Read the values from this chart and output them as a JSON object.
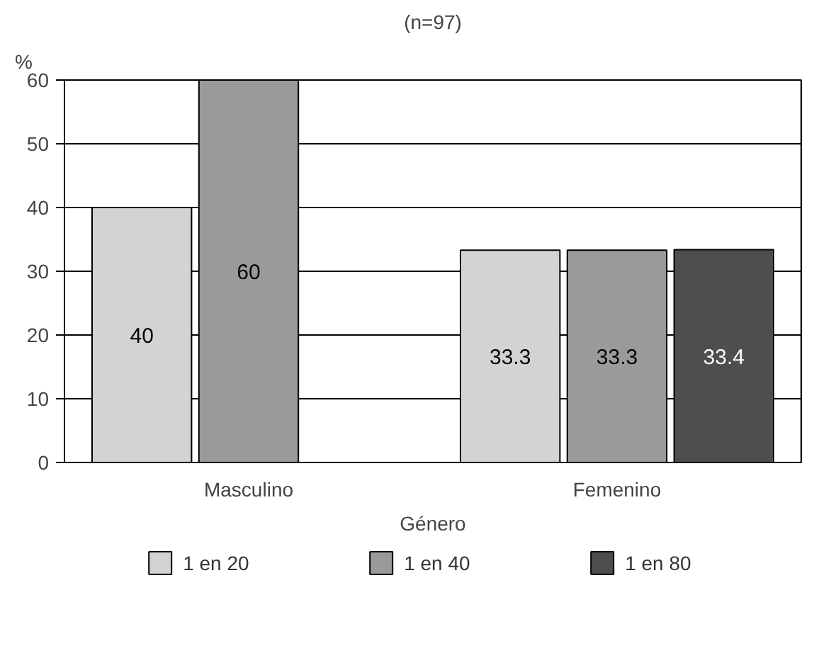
{
  "chart_data": {
    "type": "bar",
    "title": "(n=97)",
    "ylabel": "%",
    "xlabel": "Género",
    "categories": [
      "Masculino",
      "Femenino"
    ],
    "series": [
      {
        "name": "1 en 20",
        "color": "#d3d3d3",
        "values": [
          40,
          33.3
        ]
      },
      {
        "name": "1 en 40",
        "color": "#9a9a9a",
        "values": [
          60,
          33.3
        ]
      },
      {
        "name": "1 en 80",
        "color": "#4e4e4e",
        "values": [
          null,
          33.4
        ]
      }
    ],
    "ylim": [
      0,
      60
    ],
    "yticks": [
      0,
      10,
      20,
      30,
      40,
      50,
      60
    ],
    "grid": "y",
    "legend": "bottom",
    "data_labels": true
  }
}
